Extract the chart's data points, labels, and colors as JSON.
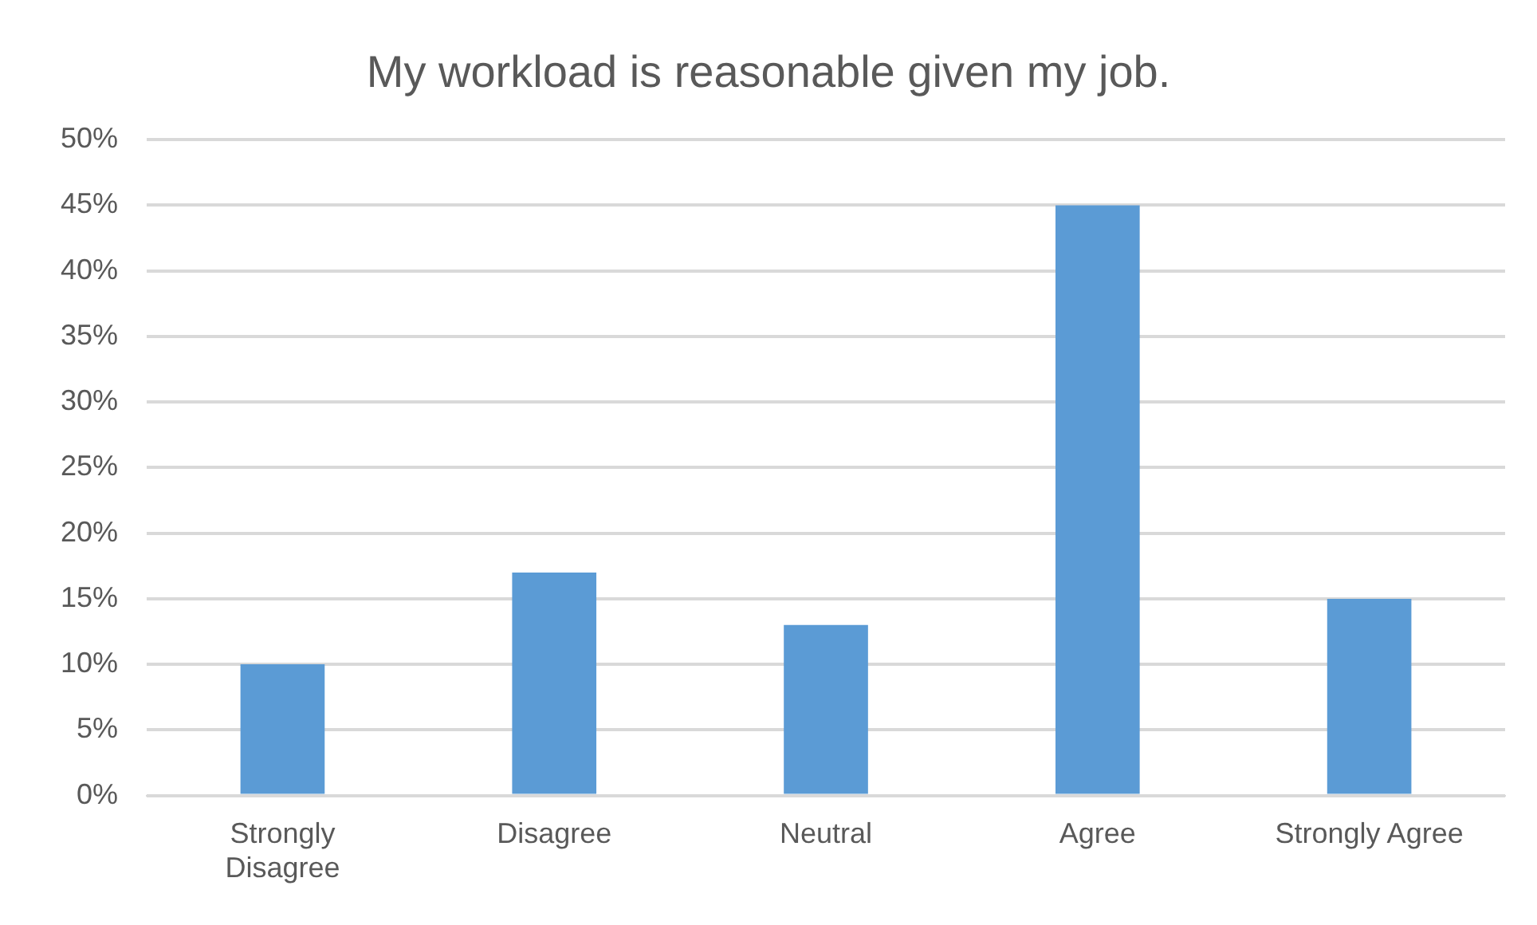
{
  "chart_data": {
    "type": "bar",
    "title": "My workload is reasonable given my job.",
    "categories": [
      "Strongly Disagree",
      "Disagree",
      "Neutral",
      "Agree",
      "Strongly Agree"
    ],
    "values": [
      10,
      17,
      13,
      45,
      15
    ],
    "color": "#5b9bd5",
    "ylim": [
      0,
      50
    ],
    "yticks": [
      {
        "value": 0,
        "label": "0%"
      },
      {
        "value": 5,
        "label": "5%"
      },
      {
        "value": 10,
        "label": "10%"
      },
      {
        "value": 15,
        "label": "15%"
      },
      {
        "value": 20,
        "label": "20%"
      },
      {
        "value": 25,
        "label": "25%"
      },
      {
        "value": 30,
        "label": "30%"
      },
      {
        "value": 35,
        "label": "35%"
      },
      {
        "value": 40,
        "label": "40%"
      },
      {
        "value": 45,
        "label": "45%"
      },
      {
        "value": 50,
        "label": "50%"
      }
    ],
    "grid": "y",
    "legend": false
  }
}
